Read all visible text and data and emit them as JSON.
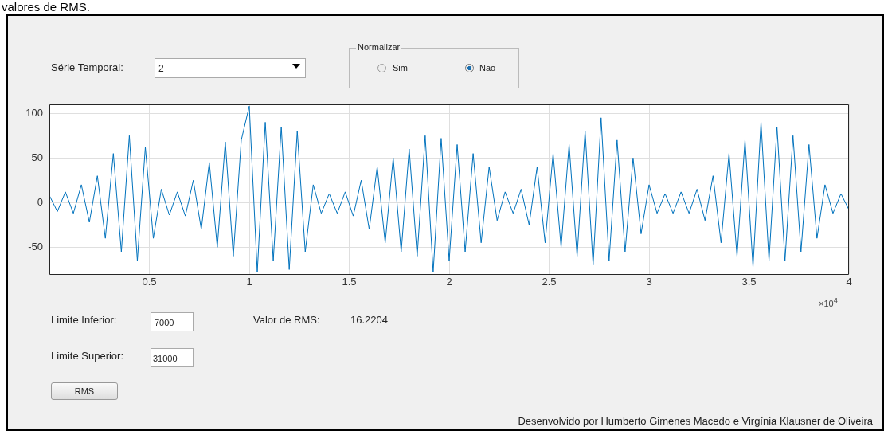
{
  "chart_data": {
    "type": "line",
    "x": [
      0,
      0.04,
      0.08,
      0.12,
      0.16,
      0.2,
      0.24,
      0.28,
      0.32,
      0.36,
      0.4,
      0.44,
      0.48,
      0.52,
      0.56,
      0.6,
      0.64,
      0.68,
      0.72,
      0.76,
      0.8,
      0.84,
      0.88,
      0.92,
      0.96,
      1,
      1.04,
      1.08,
      1.12,
      1.16,
      1.2,
      1.24,
      1.28,
      1.32,
      1.36,
      1.4,
      1.44,
      1.48,
      1.52,
      1.56,
      1.6,
      1.64,
      1.68,
      1.72,
      1.76,
      1.8,
      1.84,
      1.88,
      1.92,
      1.96,
      2,
      2.04,
      2.08,
      2.12,
      2.16,
      2.2,
      2.24,
      2.28,
      2.32,
      2.36,
      2.4,
      2.44,
      2.48,
      2.52,
      2.56,
      2.6,
      2.64,
      2.68,
      2.72,
      2.76,
      2.8,
      2.84,
      2.88,
      2.92,
      2.96,
      3,
      3.04,
      3.08,
      3.12,
      3.16,
      3.2,
      3.24,
      3.28,
      3.32,
      3.36,
      3.4,
      3.44,
      3.48,
      3.52,
      3.56,
      3.6,
      3.64,
      3.68,
      3.72,
      3.76,
      3.8,
      3.84,
      3.88,
      3.92,
      3.96,
      4
    ],
    "series": [
      {
        "color": "#0072bd",
        "values": [
          8,
          -10,
          12,
          -12,
          20,
          -22,
          30,
          -40,
          55,
          -55,
          75,
          -65,
          62,
          -40,
          15,
          -14,
          12,
          -15,
          25,
          -30,
          45,
          -50,
          68,
          -60,
          70,
          108,
          -78,
          90,
          -65,
          85,
          -75,
          80,
          -55,
          20,
          -12,
          10,
          -12,
          12,
          -15,
          25,
          -30,
          40,
          -45,
          50,
          -55,
          60,
          -60,
          75,
          -78,
          72,
          -65,
          65,
          -55,
          55,
          -45,
          40,
          -20,
          12,
          -12,
          15,
          -25,
          40,
          -45,
          55,
          -50,
          65,
          -60,
          80,
          -70,
          95,
          -65,
          70,
          -55,
          50,
          -35,
          20,
          -12,
          10,
          -12,
          12,
          -12,
          15,
          -20,
          30,
          -45,
          55,
          -60,
          70,
          -72,
          90,
          -65,
          85,
          -65,
          75,
          -55,
          65,
          -40,
          20,
          -12,
          10,
          -8
        ]
      }
    ],
    "xlim": [
      0,
      4
    ],
    "xticks": [
      0.5,
      1,
      1.5,
      2,
      2.5,
      3,
      3.5,
      4
    ],
    "ylim": [
      -80,
      110
    ],
    "yticks": [
      -50,
      0,
      50,
      100
    ],
    "grid": true,
    "legend": false,
    "marker": "none",
    "line_style": "solid",
    "annotations": [
      "valores de RMS.",
      "Série Temporal:",
      "2",
      "Normalizar",
      "Sim",
      "Não",
      "Limite Inferior:",
      "7000",
      "Limite Superior:",
      "31000",
      "Valor de RMS:",
      "16.2204",
      "RMS",
      "Desenvolvido por Humberto Gimenes Macedo e Virgínia Klausner de Oliveira",
      "×10$^{4}$"
    ]
  }
}
